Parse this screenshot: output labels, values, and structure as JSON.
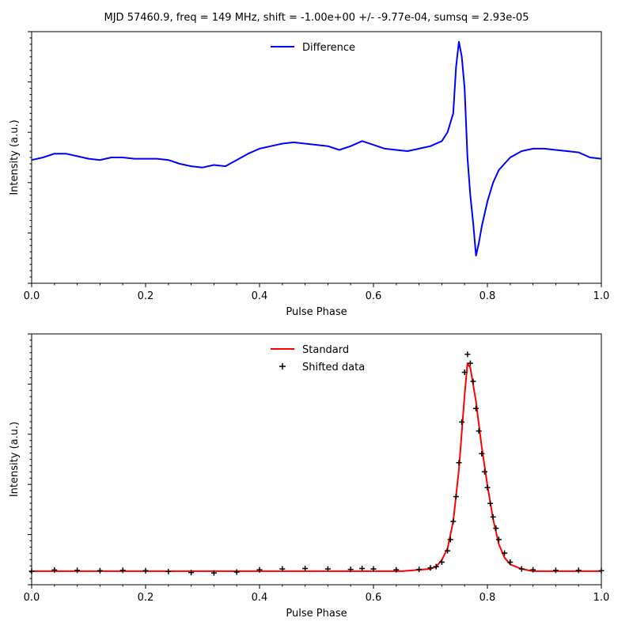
{
  "figure": {
    "title": "MJD 57460.9, freq = 149 MHz, shift = -1.00e+00 +/- -9.77e-04, sumsq = 2.93e-05"
  },
  "chart_data": [
    {
      "type": "line",
      "xlabel": "Pulse Phase",
      "ylabel": "Intensity (a.u.)",
      "xlim": [
        0.0,
        1.0
      ],
      "ylim": [
        -1.0,
        1.0
      ],
      "xticks": [
        "0.0",
        "0.2",
        "0.4",
        "0.6",
        "0.8",
        "1.0"
      ],
      "y_tick_labels_shown": false,
      "legend_position": "top-center",
      "grid": false,
      "series": [
        {
          "name": "Difference",
          "color": "#0000ff",
          "x": [
            0.0,
            0.02,
            0.04,
            0.06,
            0.08,
            0.1,
            0.12,
            0.14,
            0.16,
            0.18,
            0.2,
            0.22,
            0.24,
            0.26,
            0.28,
            0.3,
            0.32,
            0.34,
            0.36,
            0.38,
            0.4,
            0.42,
            0.44,
            0.46,
            0.48,
            0.5,
            0.52,
            0.54,
            0.56,
            0.58,
            0.6,
            0.62,
            0.64,
            0.66,
            0.68,
            0.7,
            0.72,
            0.73,
            0.74,
            0.745,
            0.75,
            0.755,
            0.76,
            0.765,
            0.77,
            0.775,
            0.78,
            0.785,
            0.79,
            0.8,
            0.81,
            0.82,
            0.84,
            0.86,
            0.88,
            0.9,
            0.92,
            0.94,
            0.96,
            0.98,
            1.0
          ],
          "y": [
            -0.02,
            0.0,
            0.03,
            0.03,
            0.01,
            -0.01,
            -0.02,
            0.0,
            0.0,
            -0.01,
            -0.01,
            -0.01,
            -0.02,
            -0.05,
            -0.07,
            -0.08,
            -0.06,
            -0.07,
            -0.02,
            0.03,
            0.07,
            0.09,
            0.11,
            0.12,
            0.11,
            0.1,
            0.09,
            0.06,
            0.09,
            0.13,
            0.1,
            0.07,
            0.06,
            0.05,
            0.07,
            0.09,
            0.13,
            0.2,
            0.35,
            0.72,
            0.92,
            0.8,
            0.55,
            0.0,
            -0.3,
            -0.52,
            -0.78,
            -0.68,
            -0.55,
            -0.35,
            -0.2,
            -0.1,
            0.0,
            0.05,
            0.07,
            0.07,
            0.06,
            0.05,
            0.04,
            0.0,
            -0.01
          ]
        }
      ]
    },
    {
      "type": "scatter",
      "xlabel": "Pulse Phase",
      "ylabel": "Intensity (a.u.)",
      "xlim": [
        0.0,
        1.0
      ],
      "ylim": [
        -0.06,
        1.05
      ],
      "xticks": [
        "0.0",
        "0.2",
        "0.4",
        "0.6",
        "0.8",
        "1.0"
      ],
      "y_tick_labels_shown": false,
      "legend_position": "top-center",
      "grid": false,
      "series": [
        {
          "name": "Standard",
          "kind": "line",
          "color": "#ff0000",
          "x": [
            0.0,
            0.1,
            0.2,
            0.3,
            0.4,
            0.5,
            0.6,
            0.65,
            0.7,
            0.71,
            0.72,
            0.73,
            0.74,
            0.75,
            0.76,
            0.765,
            0.77,
            0.78,
            0.79,
            0.8,
            0.81,
            0.82,
            0.83,
            0.84,
            0.86,
            0.88,
            0.9,
            1.0
          ],
          "y": [
            0.0,
            0.0,
            0.0,
            0.0,
            0.0,
            0.0,
            0.0,
            0.0,
            0.01,
            0.02,
            0.05,
            0.1,
            0.22,
            0.45,
            0.78,
            0.92,
            0.9,
            0.75,
            0.55,
            0.38,
            0.23,
            0.12,
            0.06,
            0.03,
            0.01,
            0.0,
            0.0,
            0.0
          ]
        },
        {
          "name": "Shifted data",
          "kind": "markers",
          "marker": "+",
          "color": "#000000",
          "x": [
            0.0,
            0.04,
            0.08,
            0.12,
            0.16,
            0.2,
            0.24,
            0.28,
            0.32,
            0.36,
            0.4,
            0.44,
            0.48,
            0.52,
            0.56,
            0.58,
            0.6,
            0.64,
            0.68,
            0.7,
            0.71,
            0.72,
            0.73,
            0.735,
            0.74,
            0.745,
            0.75,
            0.755,
            0.76,
            0.765,
            0.77,
            0.775,
            0.78,
            0.785,
            0.79,
            0.795,
            0.8,
            0.805,
            0.81,
            0.815,
            0.82,
            0.83,
            0.84,
            0.86,
            0.88,
            0.92,
            0.96,
            1.0
          ],
          "y": [
            0.0,
            0.005,
            0.004,
            0.002,
            0.004,
            0.002,
            -0.002,
            -0.006,
            -0.008,
            -0.004,
            0.006,
            0.01,
            0.012,
            0.01,
            0.008,
            0.012,
            0.01,
            0.006,
            0.008,
            0.015,
            0.02,
            0.04,
            0.09,
            0.14,
            0.22,
            0.33,
            0.48,
            0.66,
            0.88,
            0.96,
            0.92,
            0.84,
            0.72,
            0.62,
            0.52,
            0.44,
            0.37,
            0.3,
            0.24,
            0.19,
            0.14,
            0.08,
            0.04,
            0.01,
            0.006,
            0.004,
            0.004,
            0.002
          ]
        }
      ]
    }
  ]
}
